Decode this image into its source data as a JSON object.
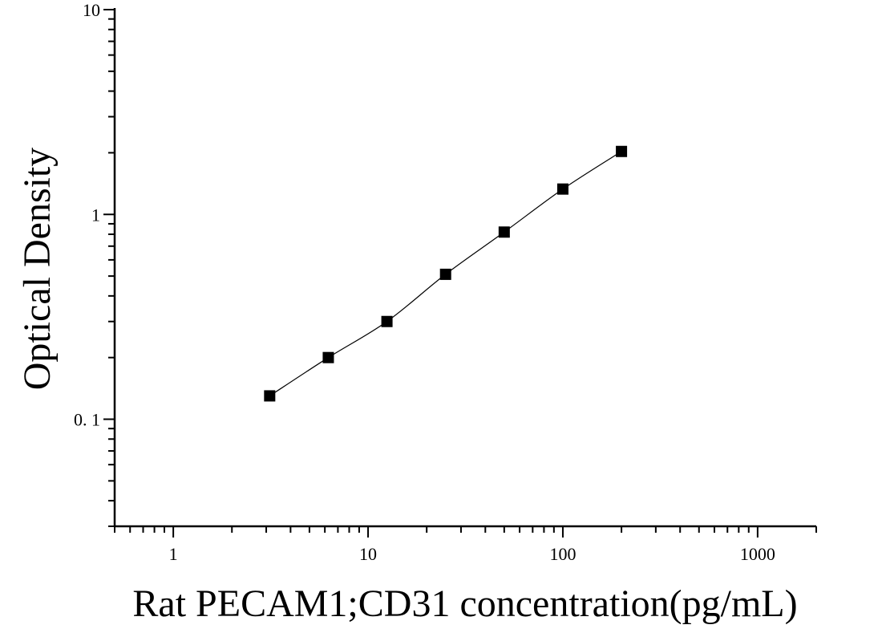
{
  "chart_data": {
    "type": "scatter",
    "xlabel": "Rat PECAM1;CD31 concentration(pg/mL)",
    "ylabel": "Optical Density",
    "x_scale": "log",
    "y_scale": "log",
    "xlim": [
      0.5,
      2000
    ],
    "ylim": [
      0.03,
      10
    ],
    "x_ticks": [
      1,
      10,
      100,
      1000
    ],
    "x_tick_labels": [
      "1",
      "10",
      "100",
      "1000"
    ],
    "y_ticks": [
      0.1,
      1,
      10
    ],
    "y_tick_labels": [
      "0. 1",
      "1",
      "10"
    ],
    "grid": false,
    "series": [
      {
        "marker": "square",
        "color": "#000000",
        "x": [
          3.125,
          6.25,
          12.5,
          25,
          50,
          100,
          200
        ],
        "y": [
          0.13,
          0.2,
          0.3,
          0.51,
          0.82,
          1.33,
          2.03
        ]
      }
    ],
    "fit_curve": true
  }
}
